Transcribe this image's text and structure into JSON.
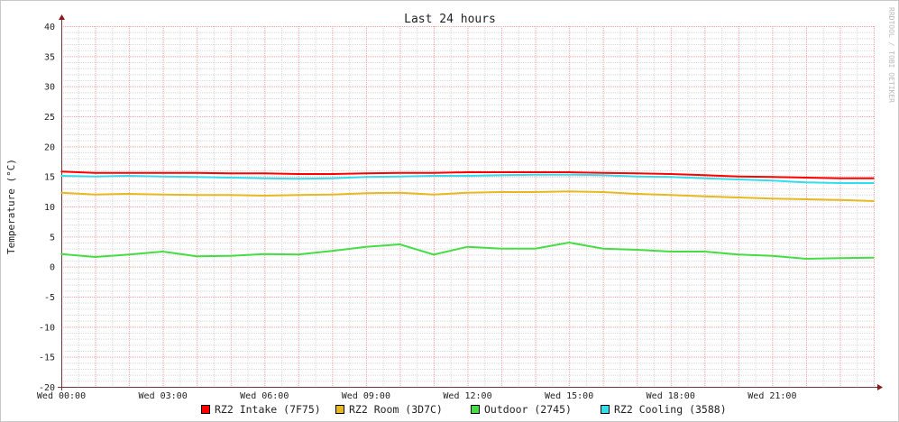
{
  "chart_data": {
    "type": "line",
    "title": "Last 24 hours",
    "ylabel": "Temperature (°C)",
    "xlabel": "",
    "watermark": "RRDTOOL / TOBI OETIKER",
    "ylim": [
      -20,
      40
    ],
    "yticks": [
      40,
      35,
      30,
      25,
      20,
      15,
      10,
      5,
      0,
      -5,
      -10,
      -15,
      -20
    ],
    "xlim_hours": [
      0,
      24
    ],
    "xticks": [
      {
        "hour": 0,
        "label": "Wed 00:00"
      },
      {
        "hour": 3,
        "label": "Wed 03:00"
      },
      {
        "hour": 6,
        "label": "Wed 06:00"
      },
      {
        "hour": 9,
        "label": "Wed 09:00"
      },
      {
        "hour": 12,
        "label": "Wed 12:00"
      },
      {
        "hour": 15,
        "label": "Wed 15:00"
      },
      {
        "hour": 18,
        "label": "Wed 18:00"
      },
      {
        "hour": 21,
        "label": "Wed 21:00"
      }
    ],
    "grid": true,
    "legend_position": "bottom",
    "x_hours": [
      0,
      1,
      2,
      3,
      4,
      5,
      6,
      7,
      8,
      9,
      10,
      11,
      12,
      13,
      14,
      15,
      16,
      17,
      18,
      19,
      20,
      21,
      22,
      23,
      24
    ],
    "series": [
      {
        "name": "RZ2 Intake (7F75)",
        "color": "#ff0000",
        "values": [
          15.8,
          15.6,
          15.6,
          15.6,
          15.6,
          15.5,
          15.5,
          15.4,
          15.4,
          15.5,
          15.6,
          15.6,
          15.7,
          15.7,
          15.7,
          15.7,
          15.6,
          15.5,
          15.4,
          15.2,
          15.0,
          14.9,
          14.8,
          14.7,
          14.7
        ]
      },
      {
        "name": "RZ2 Room (3D7C)",
        "color": "#e8b820",
        "values": [
          12.3,
          12.0,
          12.1,
          12.0,
          11.9,
          11.9,
          11.8,
          11.9,
          12.0,
          12.2,
          12.3,
          12.0,
          12.3,
          12.4,
          12.4,
          12.5,
          12.4,
          12.1,
          11.9,
          11.7,
          11.5,
          11.3,
          11.2,
          11.1,
          10.9
        ]
      },
      {
        "name": "Outdoor (2745)",
        "color": "#44dd44",
        "values": [
          2.1,
          1.6,
          2.0,
          2.5,
          1.7,
          1.8,
          2.1,
          2.0,
          2.6,
          3.3,
          3.7,
          2.0,
          3.3,
          3.0,
          3.0,
          4.0,
          3.0,
          2.8,
          2.5,
          2.5,
          2.0,
          1.8,
          1.3,
          1.4,
          1.5
        ]
      },
      {
        "name": "RZ2 Cooling (3588)",
        "color": "#33ddee",
        "values": [
          15.1,
          15.0,
          15.1,
          15.0,
          14.9,
          14.8,
          14.7,
          14.6,
          14.7,
          14.9,
          15.0,
          15.1,
          15.1,
          15.2,
          15.3,
          15.3,
          15.2,
          15.0,
          14.9,
          14.7,
          14.5,
          14.3,
          14.0,
          13.9,
          13.9
        ]
      }
    ]
  }
}
